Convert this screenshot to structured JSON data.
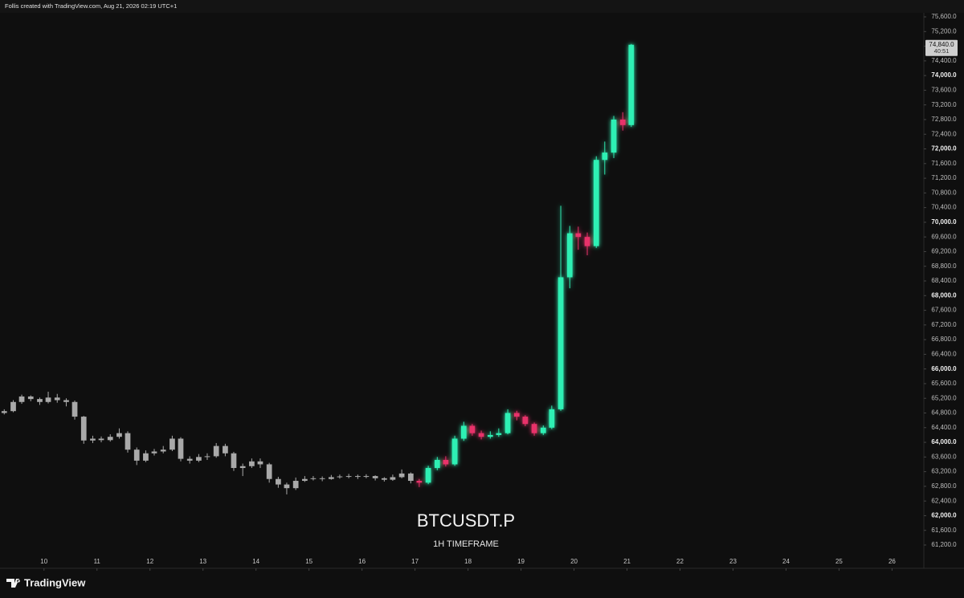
{
  "header": "Follis created with TradingView.com, Aug 21, 2026 02:19 UTC+1",
  "footer_logo": "TradingView",
  "chart_data": {
    "type": "candlestick",
    "title": "BTCUSDT.P",
    "subtitle": "1H TIMEFRAME",
    "xlim": [
      9.17,
      26.6
    ],
    "xticks": [
      10,
      11,
      12,
      13,
      14,
      15,
      16,
      17,
      18,
      19,
      20,
      21,
      22,
      23,
      24,
      25,
      26
    ],
    "ylim": [
      60565,
      75710
    ],
    "yticks": [
      {
        "value": 61200,
        "label": "61,200.0"
      },
      {
        "value": 61600,
        "label": "61,600.0"
      },
      {
        "value": 62000,
        "label": "62,000.0"
      },
      {
        "value": 62400,
        "label": "62,400.0"
      },
      {
        "value": 62800,
        "label": "62,800.0"
      },
      {
        "value": 63200,
        "label": "63,200.0"
      },
      {
        "value": 63600,
        "label": "63,600.0"
      },
      {
        "value": 64000,
        "label": "64,000.0"
      },
      {
        "value": 64400,
        "label": "64,400.0"
      },
      {
        "value": 64800,
        "label": "64,800.0"
      },
      {
        "value": 65200,
        "label": "65,200.0"
      },
      {
        "value": 65600,
        "label": "65,600.0"
      },
      {
        "value": 66000,
        "label": "66,000.0"
      },
      {
        "value": 66400,
        "label": "66,400.0"
      },
      {
        "value": 66800,
        "label": "66,800.0"
      },
      {
        "value": 67200,
        "label": "67,200.0"
      },
      {
        "value": 67600,
        "label": "67,600.0"
      },
      {
        "value": 68000,
        "label": "68,000.0"
      },
      {
        "value": 68400,
        "label": "68,400.0"
      },
      {
        "value": 68800,
        "label": "68,800.0"
      },
      {
        "value": 69200,
        "label": "69,200.0"
      },
      {
        "value": 69600,
        "label": "69,600.0"
      },
      {
        "value": 70000,
        "label": "70,000.0"
      },
      {
        "value": 70400,
        "label": "70,400.0"
      },
      {
        "value": 70800,
        "label": "70,800.0"
      },
      {
        "value": 71200,
        "label": "71,200.0"
      },
      {
        "value": 71600,
        "label": "71,600.0"
      },
      {
        "value": 72000,
        "label": "72,000.0"
      },
      {
        "value": 72400,
        "label": "72,400.0"
      },
      {
        "value": 72800,
        "label": "72,800.0"
      },
      {
        "value": 73200,
        "label": "73,200.0"
      },
      {
        "value": 73600,
        "label": "73,600.0"
      },
      {
        "value": 74000,
        "label": "74,000.0"
      },
      {
        "value": 74400,
        "label": "74,400.0"
      },
      {
        "value": 74800,
        "label": "74,800.0"
      },
      {
        "value": 75200,
        "label": "75,200.0"
      },
      {
        "value": 75600,
        "label": "75,600.0"
      }
    ],
    "series": [
      {
        "color": "#a9a9a9",
        "x": [
          9.25,
          9.42,
          9.58,
          9.75,
          9.92,
          10.08,
          10.25,
          10.42,
          10.58,
          10.75,
          10.92,
          11.08,
          11.25,
          11.42,
          11.58,
          11.75,
          11.92,
          12.08,
          12.25,
          12.42,
          12.58,
          12.75,
          12.92,
          13.08,
          13.25,
          13.42,
          13.58,
          13.75,
          13.92,
          14.08,
          14.25,
          14.42,
          14.58,
          14.75,
          14.92,
          15.08,
          15.25,
          15.42,
          15.58,
          15.75,
          15.92,
          16.08,
          16.25,
          16.42,
          16.58,
          16.75,
          16.92
        ],
        "open": [
          64800,
          64850,
          65100,
          65250,
          65180,
          65100,
          65220,
          65150,
          65100,
          64700,
          64050,
          64100,
          64060,
          64150,
          64250,
          63800,
          63500,
          63700,
          63750,
          63800,
          64100,
          63550,
          63500,
          63600,
          63620,
          63900,
          63700,
          63300,
          63350,
          63480,
          63400,
          63000,
          62850,
          62750,
          62950,
          63000,
          63020,
          63000,
          63050,
          63070,
          63080,
          63060,
          63080,
          63020,
          62980,
          63050,
          63150
        ],
        "high": [
          64900,
          65150,
          65300,
          65280,
          65220,
          65380,
          65320,
          65200,
          65140,
          64720,
          64180,
          64160,
          64220,
          64380,
          64300,
          63860,
          63780,
          63820,
          63900,
          64180,
          64140,
          63620,
          63680,
          63700,
          63980,
          63960,
          63740,
          63420,
          63560,
          63560,
          63440,
          63060,
          62900,
          63040,
          63080,
          63080,
          63070,
          63110,
          63120,
          63140,
          63120,
          63130,
          63100,
          63050,
          63120,
          63260,
          63180
        ],
        "low": [
          64760,
          64820,
          65050,
          65120,
          65020,
          65060,
          65080,
          64980,
          64620,
          63960,
          63980,
          64000,
          64020,
          64100,
          63720,
          63380,
          63460,
          63640,
          63700,
          63760,
          63480,
          63420,
          63460,
          63520,
          63580,
          63620,
          63220,
          63080,
          63300,
          63300,
          62900,
          62760,
          62580,
          62700,
          62920,
          62960,
          62940,
          62980,
          63010,
          63020,
          63000,
          63020,
          62960,
          62930,
          62950,
          63020,
          62880
        ],
        "close": [
          64850,
          65100,
          65250,
          65180,
          65100,
          65220,
          65150,
          65100,
          64700,
          64050,
          64100,
          64060,
          64150,
          64250,
          63800,
          63500,
          63700,
          63750,
          63800,
          64100,
          63550,
          63500,
          63600,
          63620,
          63900,
          63700,
          63300,
          63350,
          63480,
          63400,
          63000,
          62850,
          62750,
          62950,
          63000,
          63020,
          63000,
          63050,
          63070,
          63080,
          63060,
          63080,
          63020,
          62980,
          63050,
          63150,
          62950
        ]
      },
      {
        "color_up": "#2ff0b4",
        "color_down": "#e8326a",
        "glow": true,
        "x": [
          17.08,
          17.25,
          17.42,
          17.58,
          17.75,
          17.92,
          18.08,
          18.25,
          18.42,
          18.58,
          18.75,
          18.92,
          19.08,
          19.25,
          19.42,
          19.58,
          19.75,
          19.92,
          20.08,
          20.25,
          20.42,
          20.58,
          20.75,
          20.92,
          21.08
        ],
        "open": [
          62950,
          62900,
          63300,
          63520,
          63400,
          64100,
          64450,
          64250,
          64150,
          64200,
          64250,
          64800,
          64700,
          64500,
          64250,
          64400,
          64900,
          68500,
          69700,
          69600,
          69350,
          71700,
          71900,
          72800,
          72650
        ],
        "high": [
          63000,
          63360,
          63600,
          63620,
          64180,
          64560,
          64500,
          64320,
          64300,
          64380,
          64900,
          64860,
          64740,
          64540,
          64460,
          65000,
          70450,
          69900,
          69880,
          69720,
          71800,
          72200,
          72900,
          73000,
          74860
        ],
        "low": [
          62780,
          62860,
          63240,
          63340,
          63360,
          64040,
          64180,
          64080,
          64100,
          64150,
          64220,
          64600,
          64440,
          64180,
          64200,
          64360,
          64860,
          68200,
          69250,
          69100,
          69300,
          71300,
          71750,
          72500,
          72600
        ],
        "close": [
          62900,
          63300,
          63520,
          63400,
          64100,
          64450,
          64250,
          64150,
          64200,
          64250,
          64800,
          64700,
          64500,
          64250,
          64400,
          64900,
          68500,
          69700,
          69600,
          69350,
          71700,
          71900,
          72800,
          72650,
          74840
        ]
      }
    ],
    "last_price": {
      "value": 74840,
      "label": "74,840.0"
    },
    "countdown": "40:51"
  }
}
